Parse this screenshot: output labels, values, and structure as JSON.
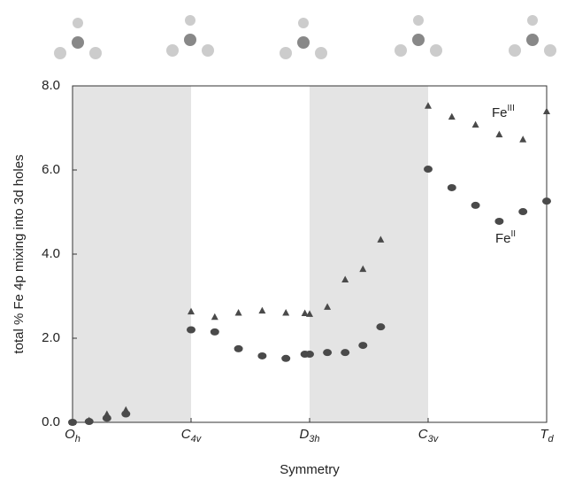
{
  "chart_data": {
    "type": "scatter",
    "xlabel": "Symmetry",
    "ylabel": "total % Fe 4p mixing into 3d holes",
    "xlim": [
      0,
      4
    ],
    "ylim": [
      0,
      8
    ],
    "xticks": [
      {
        "value": 0,
        "label": "Oh"
      },
      {
        "value": 1,
        "label": "C4v"
      },
      {
        "value": 2,
        "label": "D3h"
      },
      {
        "value": 3,
        "label": "C3v"
      },
      {
        "value": 4,
        "label": "Td"
      }
    ],
    "yticks": [
      {
        "value": 0,
        "label": "0.0"
      },
      {
        "value": 2,
        "label": "2.0"
      },
      {
        "value": 4,
        "label": "4.0"
      },
      {
        "value": 6,
        "label": "6.0"
      },
      {
        "value": 8,
        "label": "8.0"
      }
    ],
    "shaded_regions": [
      [
        0,
        1
      ],
      [
        2,
        3
      ]
    ],
    "shade_color": "#e4e4e4",
    "annotations": [
      "FeIII",
      "FeII"
    ],
    "series": [
      {
        "name": "FeIII",
        "marker": "triangle",
        "color": "#4a4a4a",
        "x": [
          0,
          0.14,
          0.29,
          0.45,
          1.0,
          1.2,
          1.4,
          1.6,
          1.8,
          1.96,
          2.0,
          2.15,
          2.3,
          2.45,
          2.6,
          3.0,
          3.2,
          3.4,
          3.6,
          3.8,
          4.0
        ],
        "values": [
          0,
          0.04,
          0.19,
          0.29,
          2.63,
          2.5,
          2.6,
          2.65,
          2.6,
          2.59,
          2.57,
          2.74,
          3.39,
          3.64,
          4.34,
          7.52,
          7.26,
          7.07,
          6.84,
          6.72,
          7.39
        ]
      },
      {
        "name": "FeII",
        "marker": "circle",
        "color": "#4a4a4a",
        "x": [
          0,
          0.14,
          0.29,
          0.45,
          1.0,
          1.2,
          1.4,
          1.6,
          1.8,
          1.96,
          2.0,
          2.15,
          2.3,
          2.45,
          2.6,
          3.0,
          3.2,
          3.4,
          3.6,
          3.8,
          4.0
        ],
        "values": [
          0,
          0.02,
          0.1,
          0.2,
          2.2,
          2.15,
          1.75,
          1.58,
          1.52,
          1.62,
          1.62,
          1.66,
          1.66,
          1.83,
          2.27,
          6.02,
          5.58,
          5.16,
          4.78,
          5.01,
          5.26
        ]
      }
    ]
  }
}
